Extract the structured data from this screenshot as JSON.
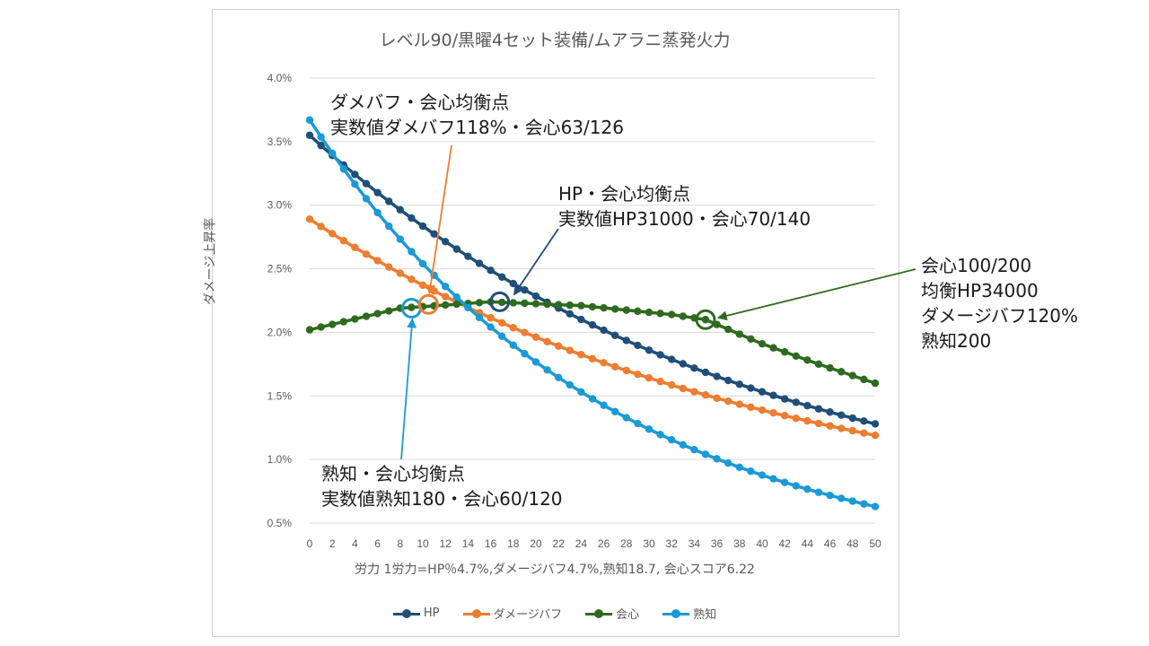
{
  "chart_data": {
    "type": "line",
    "title": "レベル90/黒曜4セット装備/ムアラニ蒸発火力",
    "xlabel": "労力 1労力=HP％4.7%,ダメージバフ4.7%,熟知18.7, 会心スコア6.22",
    "ylabel": "ダメージ上昇率",
    "xlim": [
      0,
      50
    ],
    "ylim": [
      0.005,
      0.04
    ],
    "y_ticks": [
      "0.5%",
      "1.0%",
      "1.5%",
      "2.0%",
      "2.5%",
      "3.0%",
      "3.5%",
      "4.0%"
    ],
    "x_ticks": [
      "0",
      "2",
      "4",
      "6",
      "8",
      "10",
      "12",
      "14",
      "16",
      "18",
      "20",
      "22",
      "24",
      "26",
      "28",
      "30",
      "32",
      "34",
      "36",
      "38",
      "40",
      "42",
      "44",
      "46",
      "48",
      "50"
    ],
    "grid": "horizontal",
    "legend_position": "bottom",
    "series": [
      {
        "name": "HP",
        "color": "#1f4e79",
        "start": 0.0355,
        "end": 0.0128,
        "curve": 1.3
      },
      {
        "name": "ダメージバフ",
        "color": "#ed7d31",
        "start": 0.0289,
        "end": 0.0119,
        "curve": 1.2
      },
      {
        "name": "会心",
        "color": "#2e6b1f",
        "points": [
          [
            0,
            0.0202
          ],
          [
            8,
            0.0219
          ],
          [
            16,
            0.0224
          ],
          [
            24,
            0.0221
          ],
          [
            32,
            0.0214
          ],
          [
            35,
            0.021
          ],
          [
            40,
            0.0191
          ],
          [
            45,
            0.0175
          ],
          [
            50,
            0.016
          ]
        ]
      },
      {
        "name": "熟知",
        "color": "#1a9ad6",
        "start": 0.0367,
        "end": 0.0063,
        "curve": 1.9
      }
    ],
    "markers": [
      {
        "x": 9,
        "y": 0.0219,
        "color": "#1a9ad6"
      },
      {
        "x": 10.5,
        "y": 0.0222,
        "color": "#ed7d31"
      },
      {
        "x": 16.8,
        "y": 0.0224,
        "color": "#1f4e79"
      },
      {
        "x": 35,
        "y": 0.021,
        "color": "#2e6b1f"
      }
    ],
    "annotations": [
      {
        "text": "ダメバフ・会心均衡点\n実数値ダメバフ118%・会心63/126"
      },
      {
        "text": "HP・会心均衡点\n実数値HP31000・会心70/140"
      },
      {
        "text": "会心100/200\n均衡HP34000\nダメージバフ120%\n熟知200"
      },
      {
        "text": "熟知・会心均衡点\n実数値熟知180・会心60/120"
      }
    ]
  }
}
